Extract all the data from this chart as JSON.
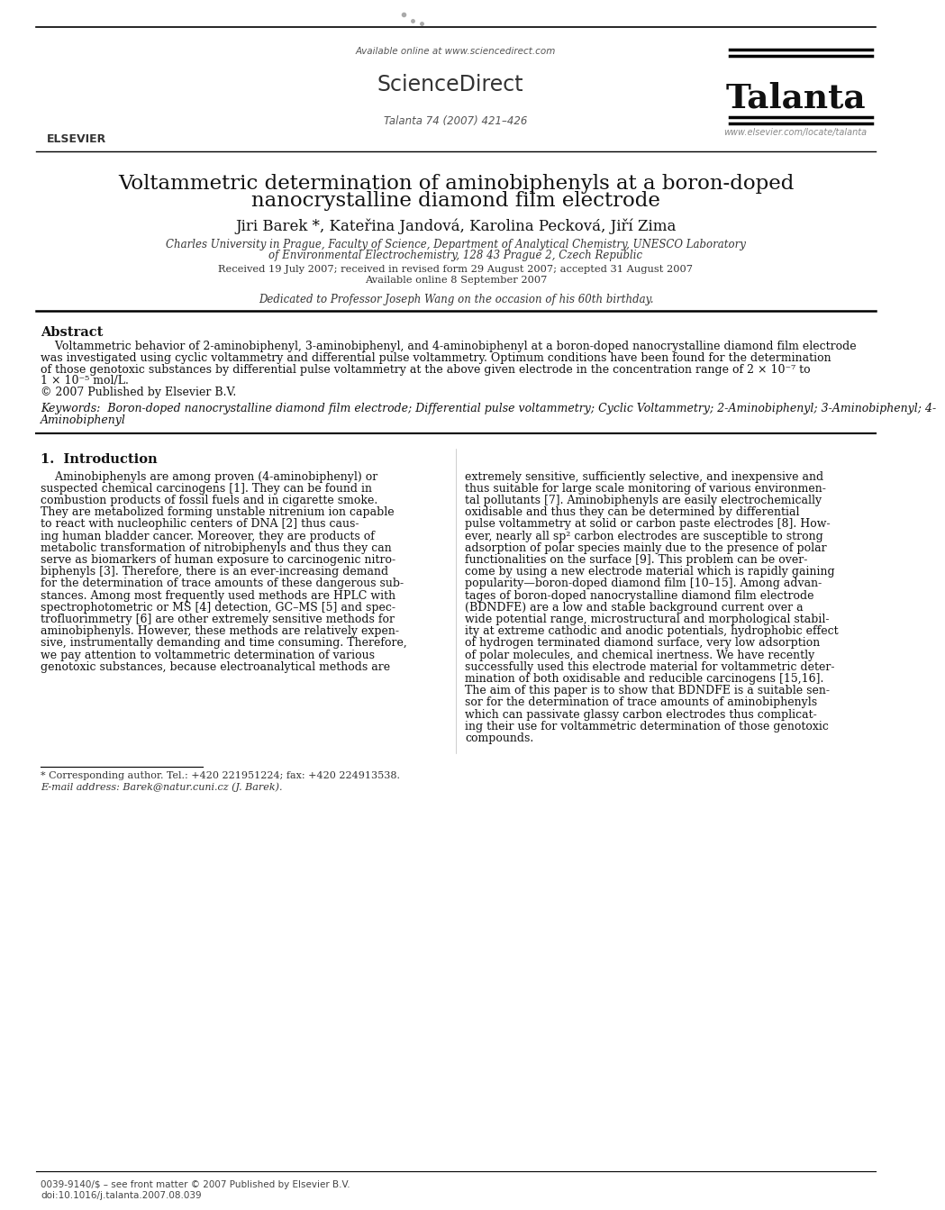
{
  "bg_color": "#ffffff",
  "header": {
    "available_online": "Available online at www.sciencedirect.com",
    "sciencedirect": "ScienceDirect",
    "journal_name": "Talanta",
    "journal_info": "Talanta 74 (2007) 421–426",
    "website": "www.elsevier.com/locate/talanta"
  },
  "title_line1": "Voltammetric determination of aminobiphenyls at a boron-doped",
  "title_line2": "nanocrystalline diamond film electrode",
  "authors": "Jiri Barek *, Kateřina Jandová, Karolina Pecková, Jiří Zima",
  "affiliation1": "Charles University in Prague, Faculty of Science, Department of Analytical Chemistry, UNESCO Laboratory",
  "affiliation2": "of Environmental Electrochemistry, 128 43 Prague 2, Czech Republic",
  "received": "Received 19 July 2007; received in revised form 29 August 2007; accepted 31 August 2007",
  "available": "Available online 8 September 2007",
  "dedication": "Dedicated to Professor Joseph Wang on the occasion of his 60th birthday.",
  "abstract_title": "Abstract",
  "abstract_lines": [
    "    Voltammetric behavior of 2-aminobiphenyl, 3-aminobiphenyl, and 4-aminobiphenyl at a boron-doped nanocrystalline diamond film electrode",
    "was investigated using cyclic voltammetry and differential pulse voltammetry. Optimum conditions have been found for the determination",
    "of those genotoxic substances by differential pulse voltammetry at the above given electrode in the concentration range of 2 × 10⁻⁷ to",
    "1 × 10⁻⁵ mol/L.",
    "© 2007 Published by Elsevier B.V."
  ],
  "keywords_line1": "Keywords:  Boron-doped nanocrystalline diamond film electrode; Differential pulse voltammetry; Cyclic Voltammetry; 2-Aminobiphenyl; 3-Aminobiphenyl; 4-",
  "keywords_line2": "Aminobiphenyl",
  "section1_title": "1.  Introduction",
  "col1_lines": [
    "    Aminobiphenyls are among proven (4-aminobiphenyl) or",
    "suspected chemical carcinogens [1]. They can be found in",
    "combustion products of fossil fuels and in cigarette smoke.",
    "They are metabolized forming unstable nitrenium ion capable",
    "to react with nucleophilic centers of DNA [2] thus caus-",
    "ing human bladder cancer. Moreover, they are products of",
    "metabolic transformation of nitrobiphenyls and thus they can",
    "serve as biomarkers of human exposure to carcinogenic nitro-",
    "biphenyls [3]. Therefore, there is an ever-increasing demand",
    "for the determination of trace amounts of these dangerous sub-",
    "stances. Among most frequently used methods are HPLC with",
    "spectrophotometric or MS [4] detection, GC–MS [5] and spec-",
    "trofluorimmetry [6] are other extremely sensitive methods for",
    "aminobiphenyls. However, these methods are relatively expen-",
    "sive, instrumentally demanding and time consuming. Therefore,",
    "we pay attention to voltammetric determination of various",
    "genotoxic substances, because electroanalytical methods are"
  ],
  "col2_lines": [
    "extremely sensitive, sufficiently selective, and inexpensive and",
    "thus suitable for large scale monitoring of various environmen-",
    "tal pollutants [7]. Aminobiphenyls are easily electrochemically",
    "oxidisable and thus they can be determined by differential",
    "pulse voltammetry at solid or carbon paste electrodes [8]. How-",
    "ever, nearly all sp² carbon electrodes are susceptible to strong",
    "adsorption of polar species mainly due to the presence of polar",
    "functionalities on the surface [9]. This problem can be over-",
    "come by using a new electrode material which is rapidly gaining",
    "popularity—boron-doped diamond film [10–15]. Among advan-",
    "tages of boron-doped nanocrystalline diamond film electrode",
    "(BDNDFE) are a low and stable background current over a",
    "wide potential range, microstructural and morphological stabil-",
    "ity at extreme cathodic and anodic potentials, hydrophobic effect",
    "of hydrogen terminated diamond surface, very low adsorption",
    "of polar molecules, and chemical inertness. We have recently",
    "successfully used this electrode material for voltammetric deter-",
    "mination of both oxidisable and reducible carcinogens [15,16].",
    "The aim of this paper is to show that BDNDFE is a suitable sen-",
    "sor for the determination of trace amounts of aminobiphenyls",
    "which can passivate glassy carbon electrodes thus complicat-",
    "ing their use for voltammetric determination of those genotoxic",
    "compounds."
  ],
  "footnote_star": "* Corresponding author. Tel.: +420 221951224; fax: +420 224913538.",
  "footnote_email": "E-mail address: Barek@natur.cuni.cz (J. Barek).",
  "footer_issn": "0039-9140/$ – see front matter © 2007 Published by Elsevier B.V.",
  "footer_doi": "doi:10.1016/j.talanta.2007.08.039"
}
